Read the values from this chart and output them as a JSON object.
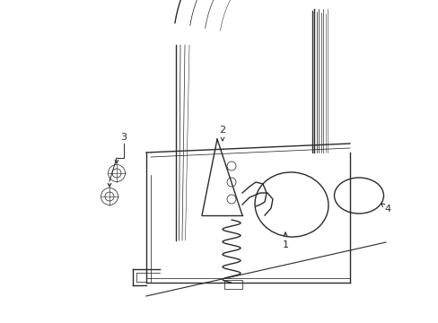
{
  "bg_color": "#ffffff",
  "lc": "#2a2a2a",
  "lw": 1.0,
  "tlw": 0.55,
  "fs": 8,
  "fig_w": 4.89,
  "fig_h": 3.6,
  "dpi": 100,
  "labels": [
    "1",
    "2",
    "3",
    "4"
  ]
}
